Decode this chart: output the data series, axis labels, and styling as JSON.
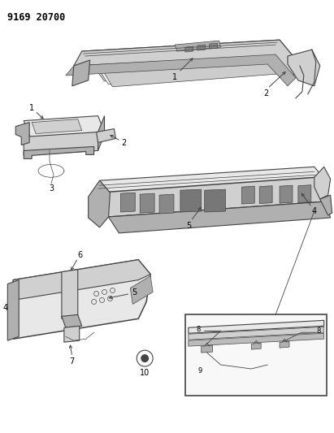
{
  "title": "9169 20700",
  "bg_color": "#ffffff",
  "line_color": "#444444",
  "label_color": "#000000",
  "lw_thin": 0.5,
  "lw_med": 0.8,
  "lw_thick": 1.1,
  "fig_w": 4.11,
  "fig_h": 5.33,
  "dpi": 100
}
